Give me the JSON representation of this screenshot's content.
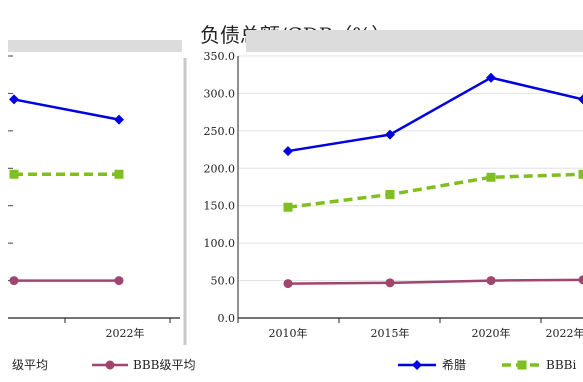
{
  "chart_data": [
    {
      "type": "line",
      "x": [
        "",
        "2022年"
      ],
      "series": [
        {
          "name": "希腊",
          "values": [
            292,
            265
          ],
          "color": "#0000e0",
          "marker": "diamond",
          "dashed": false
        },
        {
          "name": "BBB级平均",
          "values": [
            192,
            192
          ],
          "color": "#7fbf1f",
          "marker": "square",
          "dashed": true
        },
        {
          "name": "BBB级平均",
          "values": [
            50,
            50
          ],
          "color": "#a0456e",
          "marker": "circle",
          "dashed": false
        }
      ],
      "legend_labels": [
        "级平均",
        "BBB级平均"
      ],
      "ylim": [
        0,
        350
      ],
      "legend": "bottom"
    },
    {
      "type": "line",
      "title": "负债总额/GDP（%）",
      "x": [
        "2010年",
        "2015年",
        "2020年",
        "2022年"
      ],
      "y_ticks": [
        "0.0",
        "50.0",
        "100.0",
        "150.0",
        "200.0",
        "250.0",
        "300.0",
        "350.0"
      ],
      "series": [
        {
          "name": "希腊",
          "values": [
            223,
            245,
            321,
            292
          ],
          "color": "#0000e0",
          "marker": "diamond",
          "dashed": false
        },
        {
          "name": "BBB级平均",
          "values": [
            148,
            165,
            188,
            192
          ],
          "color": "#7fbf1f",
          "marker": "square",
          "dashed": true
        },
        {
          "name": "",
          "values": [
            46,
            47,
            50,
            51
          ],
          "color": "#a0456e",
          "marker": "circle",
          "dashed": false
        }
      ],
      "legend_labels": [
        "希腊",
        "BBBi"
      ],
      "ylim": [
        0,
        350
      ],
      "legend": "bottom"
    }
  ]
}
